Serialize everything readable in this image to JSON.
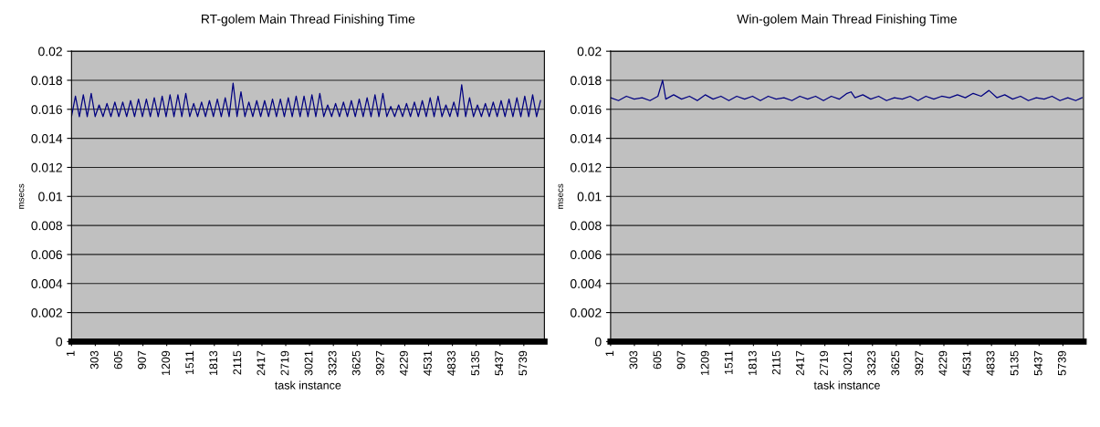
{
  "chart_data": [
    {
      "type": "line",
      "title": "RT-golem Main Thread Finishing Time",
      "xlabel": "task instance",
      "ylabel": "msecs",
      "grid": "y",
      "marker": "none",
      "line_style": "solid",
      "xlim": [
        1,
        6000
      ],
      "ylim": [
        0,
        0.02
      ],
      "xticks": [
        1,
        303,
        605,
        907,
        1209,
        1511,
        1813,
        2115,
        2417,
        2719,
        3021,
        3323,
        3625,
        3927,
        4229,
        4531,
        4833,
        5135,
        5437,
        5739
      ],
      "yticks": [
        0,
        0.002,
        0.004,
        0.006,
        0.008,
        0.01,
        0.012,
        0.014,
        0.016,
        0.018,
        0.02
      ],
      "series": [
        {
          "color": "#000080",
          "x": [
            1,
            51,
            101,
            151,
            201,
            251,
            301,
            351,
            401,
            451,
            501,
            551,
            601,
            651,
            701,
            751,
            801,
            851,
            901,
            951,
            1001,
            1051,
            1101,
            1151,
            1201,
            1251,
            1301,
            1351,
            1401,
            1451,
            1501,
            1551,
            1601,
            1651,
            1701,
            1751,
            1801,
            1851,
            1901,
            1951,
            2001,
            2051,
            2101,
            2151,
            2201,
            2251,
            2301,
            2351,
            2401,
            2451,
            2501,
            2551,
            2601,
            2651,
            2701,
            2751,
            2801,
            2851,
            2901,
            2951,
            3001,
            3051,
            3101,
            3151,
            3201,
            3251,
            3301,
            3351,
            3401,
            3451,
            3501,
            3551,
            3601,
            3651,
            3701,
            3751,
            3801,
            3851,
            3901,
            3951,
            4001,
            4051,
            4101,
            4151,
            4201,
            4251,
            4301,
            4351,
            4401,
            4451,
            4501,
            4551,
            4601,
            4651,
            4701,
            4751,
            4801,
            4851,
            4901,
            4951,
            5001,
            5051,
            5101,
            5151,
            5201,
            5251,
            5301,
            5351,
            5401,
            5451,
            5501,
            5551,
            5601,
            5651,
            5701,
            5751,
            5801,
            5851,
            5901,
            5951
          ],
          "values": [
            0.0155,
            0.0169,
            0.0155,
            0.017,
            0.0155,
            0.0171,
            0.0155,
            0.0163,
            0.0155,
            0.0164,
            0.0155,
            0.0165,
            0.0155,
            0.0165,
            0.0155,
            0.0166,
            0.0155,
            0.0167,
            0.0155,
            0.0167,
            0.0155,
            0.0168,
            0.0155,
            0.0169,
            0.0155,
            0.017,
            0.0155,
            0.017,
            0.0155,
            0.0171,
            0.0155,
            0.0164,
            0.0155,
            0.0165,
            0.0155,
            0.0166,
            0.0155,
            0.0167,
            0.0155,
            0.0168,
            0.0155,
            0.0178,
            0.0155,
            0.0172,
            0.0155,
            0.0165,
            0.0155,
            0.0166,
            0.0155,
            0.0166,
            0.0155,
            0.0167,
            0.0155,
            0.0167,
            0.0155,
            0.0168,
            0.0155,
            0.0169,
            0.0155,
            0.0169,
            0.0155,
            0.017,
            0.0155,
            0.0171,
            0.0155,
            0.0163,
            0.0155,
            0.0164,
            0.0155,
            0.0165,
            0.0155,
            0.0166,
            0.0155,
            0.0167,
            0.0155,
            0.0168,
            0.0155,
            0.017,
            0.0155,
            0.0171,
            0.0155,
            0.0162,
            0.0155,
            0.0163,
            0.0155,
            0.0164,
            0.0155,
            0.0165,
            0.0155,
            0.0166,
            0.0155,
            0.0168,
            0.0155,
            0.0169,
            0.0155,
            0.0163,
            0.0155,
            0.0165,
            0.0155,
            0.0177,
            0.0155,
            0.0168,
            0.0155,
            0.0163,
            0.0155,
            0.0164,
            0.0155,
            0.0165,
            0.0155,
            0.0166,
            0.0155,
            0.0167,
            0.0155,
            0.0168,
            0.0155,
            0.0169,
            0.0155,
            0.017,
            0.0155,
            0.0166
          ]
        }
      ]
    },
    {
      "type": "line",
      "title": "Win-golem Main Thread Finishing Time",
      "xlabel": "task instance",
      "ylabel": "msecs",
      "grid": "y",
      "marker": "none",
      "line_style": "solid",
      "xlim": [
        1,
        6000
      ],
      "ylim": [
        0,
        0.02
      ],
      "xticks": [
        1,
        303,
        605,
        907,
        1209,
        1511,
        1813,
        2115,
        2417,
        2719,
        3021,
        3323,
        3625,
        3927,
        4229,
        4531,
        4833,
        5135,
        5437,
        5739
      ],
      "yticks": [
        0,
        0.002,
        0.004,
        0.006,
        0.008,
        0.01,
        0.012,
        0.014,
        0.016,
        0.018,
        0.02
      ],
      "series": [
        {
          "color": "#000080",
          "x": [
            1,
            101,
            201,
            301,
            401,
            501,
            601,
            661,
            701,
            801,
            901,
            1001,
            1101,
            1201,
            1301,
            1401,
            1501,
            1601,
            1701,
            1801,
            1901,
            2001,
            2101,
            2201,
            2301,
            2401,
            2501,
            2601,
            2701,
            2801,
            2901,
            3001,
            3051,
            3101,
            3201,
            3301,
            3401,
            3501,
            3601,
            3701,
            3801,
            3901,
            4001,
            4101,
            4201,
            4301,
            4401,
            4501,
            4601,
            4701,
            4801,
            4901,
            5001,
            5101,
            5201,
            5301,
            5401,
            5501,
            5601,
            5701,
            5801,
            5901,
            5981
          ],
          "values": [
            0.0168,
            0.0166,
            0.0169,
            0.0167,
            0.0168,
            0.0166,
            0.0169,
            0.018,
            0.0167,
            0.017,
            0.0167,
            0.0169,
            0.0166,
            0.017,
            0.0167,
            0.0169,
            0.0166,
            0.0169,
            0.0167,
            0.0169,
            0.0166,
            0.0169,
            0.0167,
            0.0168,
            0.0166,
            0.0169,
            0.0167,
            0.0169,
            0.0166,
            0.0169,
            0.0167,
            0.0171,
            0.0172,
            0.0168,
            0.017,
            0.0167,
            0.0169,
            0.0166,
            0.0168,
            0.0167,
            0.0169,
            0.0166,
            0.0169,
            0.0167,
            0.0169,
            0.0168,
            0.017,
            0.0168,
            0.0171,
            0.0169,
            0.0173,
            0.0168,
            0.017,
            0.0167,
            0.0169,
            0.0166,
            0.0168,
            0.0167,
            0.0169,
            0.0166,
            0.0168,
            0.0166,
            0.0168
          ]
        }
      ]
    }
  ]
}
